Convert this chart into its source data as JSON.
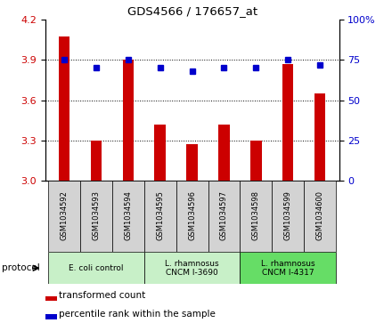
{
  "title": "GDS4566 / 176657_at",
  "samples": [
    "GSM1034592",
    "GSM1034593",
    "GSM1034594",
    "GSM1034595",
    "GSM1034596",
    "GSM1034597",
    "GSM1034598",
    "GSM1034599",
    "GSM1034600"
  ],
  "transformed_count": [
    4.07,
    3.3,
    3.9,
    3.42,
    3.27,
    3.42,
    3.3,
    3.87,
    3.65
  ],
  "percentile_rank": [
    75,
    70,
    75,
    70,
    68,
    70,
    70,
    75,
    72
  ],
  "ylim_left": [
    3.0,
    4.2
  ],
  "ylim_right": [
    0,
    100
  ],
  "yticks_left": [
    3.0,
    3.3,
    3.6,
    3.9,
    4.2
  ],
  "yticks_right": [
    0,
    25,
    50,
    75,
    100
  ],
  "bar_color": "#cc0000",
  "dot_color": "#0000cc",
  "bar_width": 0.35,
  "protocols": [
    {
      "label": "E. coli control",
      "start": 0,
      "end": 3,
      "color": "#c8f0c8"
    },
    {
      "label": "L. rhamnosus\nCNCM I-3690",
      "start": 3,
      "end": 6,
      "color": "#c8f0c8"
    },
    {
      "label": "L. rhamnosus\nCNCM I-4317",
      "start": 6,
      "end": 9,
      "color": "#66dd66"
    }
  ],
  "legend_bar_label": "transformed count",
  "legend_dot_label": "percentile rank within the sample",
  "protocol_label": "protocol",
  "bg_color": "#ffffff",
  "tick_color_left": "#cc0000",
  "tick_color_right": "#0000cc",
  "cell_color": "#d3d3d3",
  "plot_bg": "#ffffff"
}
